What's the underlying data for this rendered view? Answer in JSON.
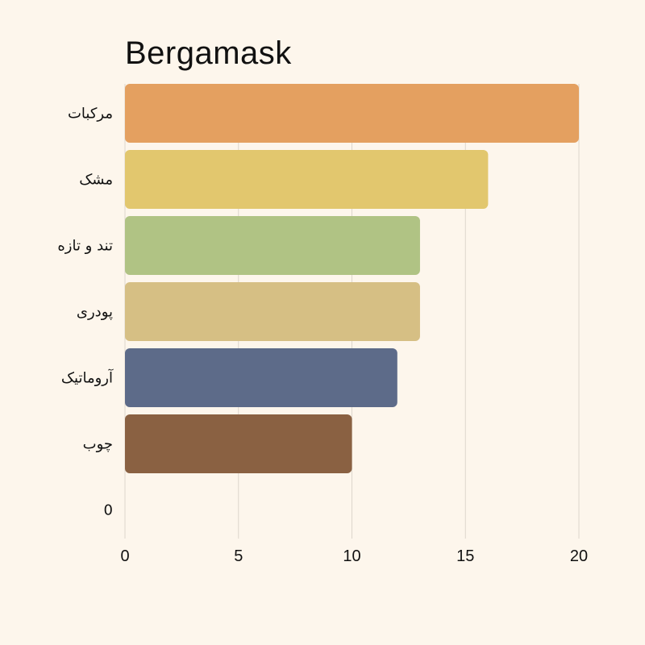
{
  "chart_data": {
    "type": "bar",
    "orientation": "horizontal",
    "title": "Bergamask",
    "categories": [
      "مرکبات",
      "مشک",
      "تند و تازه",
      "پودری",
      "آروماتیک",
      "چوب",
      "0"
    ],
    "values": [
      20,
      16,
      13,
      13,
      12,
      10,
      0
    ],
    "colors": [
      "#e4a060",
      "#e2c76e",
      "#b0c384",
      "#d6bf84",
      "#5d6b89",
      "#8a6142",
      "#000000"
    ],
    "xlim": [
      0,
      20
    ],
    "xticks": [
      0,
      5,
      10,
      15,
      20
    ],
    "xlabel": "",
    "ylabel": "",
    "grid": "vertical",
    "legend": "none"
  }
}
